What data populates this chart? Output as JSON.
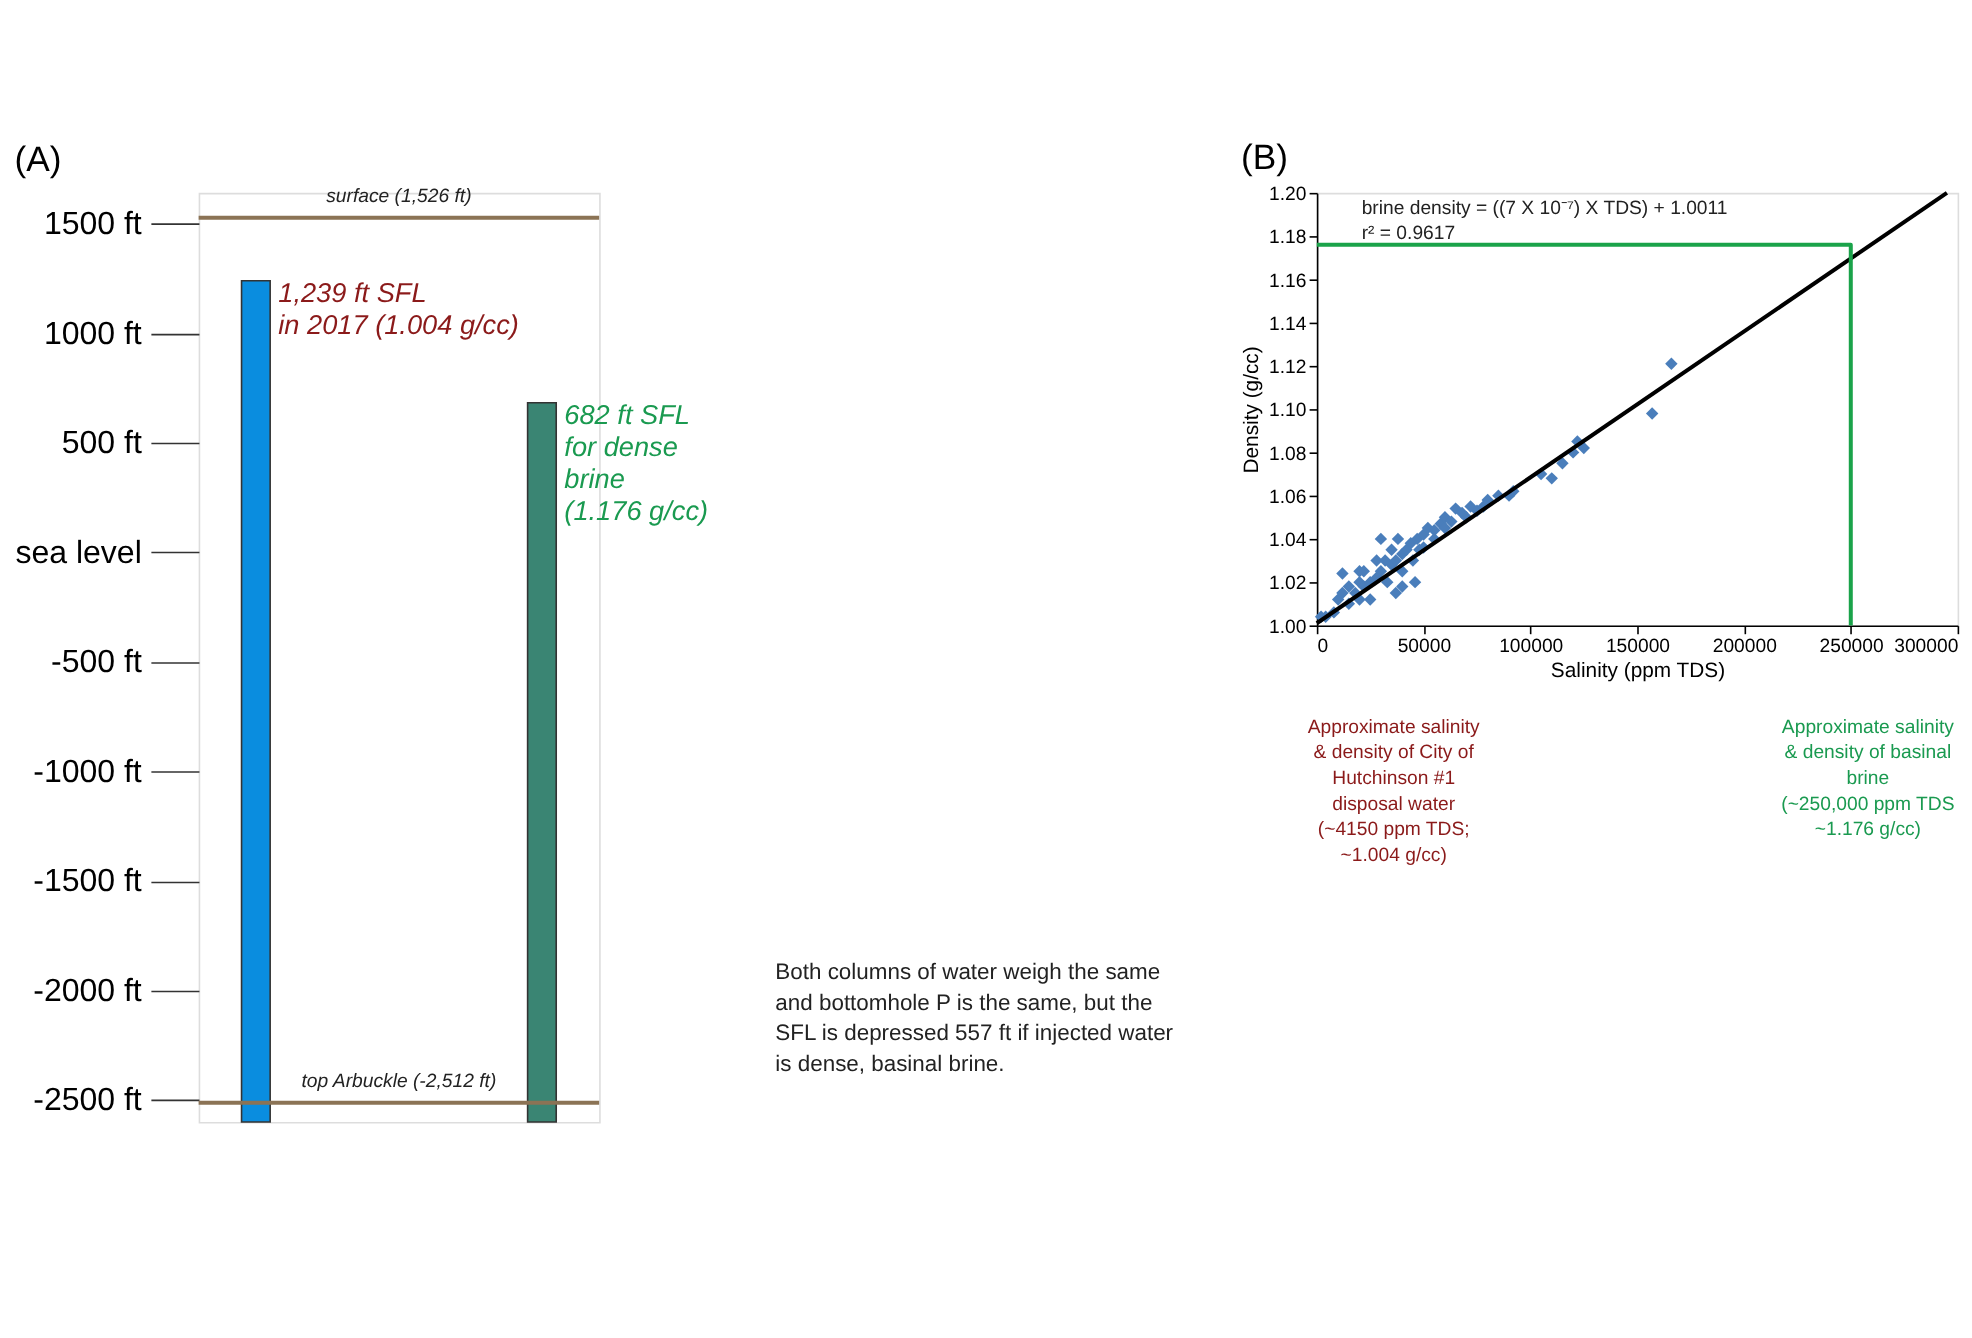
{
  "chart_data": [
    {
      "type": "bar",
      "title": "(A)",
      "categories": [
        null,
        null
      ],
      "base": [
        -2600,
        -2600
      ],
      "values": [
        3839,
        3282
      ],
      "colors": [
        "#0a8ddf",
        "#3a8573"
      ],
      "ylim": [
        -2600,
        1640
      ],
      "yticks": [
        {
          "value": 1500,
          "label": "1500 ft"
        },
        {
          "value": 1000,
          "label": "1000 ft"
        },
        {
          "value": 500,
          "label": "500 ft"
        },
        {
          "value": 0,
          "label": "sea level"
        },
        {
          "value": -500,
          "label": "-500 ft"
        },
        {
          "value": -1000,
          "label": "-1000 ft"
        },
        {
          "value": -1500,
          "label": "-1500 ft"
        },
        {
          "value": -2000,
          "label": "-2000 ft"
        },
        {
          "value": -2500,
          "label": "-2500 ft"
        }
      ],
      "tick_labels": "y",
      "grid": false,
      "ref_lines": [
        {
          "axis": "y",
          "value": 1526,
          "label": "surface (1,526 ft)",
          "color": "#8b7355"
        },
        {
          "axis": "y",
          "value": -2512,
          "label": "top Arbuckle (-2,512 ft)",
          "color": "#8b7355"
        }
      ],
      "annotations": [
        "1,239 ft SFL\nin 2017 (1.004 g/cc)",
        "682 ft SFL\nfor dense\nbrine\n(1.176 g/cc)",
        "Both columns of water weigh the same\nand bottomhole P is the same, but the\nSFL is depressed 557 ft if injected water\nis dense, basinal brine."
      ]
    },
    {
      "type": "scatter",
      "title": "(B)",
      "xlabel": "Salinity (ppm TDS)",
      "ylabel": "Density (g/cc)",
      "xlim": [
        0,
        300000
      ],
      "xticks": [
        0,
        50000,
        100000,
        150000,
        200000,
        250000,
        300000
      ],
      "ylim": [
        1.0,
        1.2
      ],
      "yticks": [
        {
          "value": 1.0,
          "label": "1.00"
        },
        {
          "value": 1.02,
          "label": "1.02"
        },
        {
          "value": 1.04,
          "label": "1.04"
        },
        {
          "value": 1.06,
          "label": "1.06"
        },
        {
          "value": 1.08,
          "label": "1.08"
        },
        {
          "value": 1.1,
          "label": "1.10"
        },
        {
          "value": 1.12,
          "label": "1.12"
        },
        {
          "value": 1.14,
          "label": "1.14"
        },
        {
          "value": 1.16,
          "label": "1.16"
        },
        {
          "value": 1.18,
          "label": "1.18"
        },
        {
          "value": 1.2,
          "label": "1.20"
        }
      ],
      "grid": false,
      "marker": "diamond",
      "series": [
        {
          "color": "#4a7ebb",
          "x": [
            2000,
            4150,
            8000,
            10000,
            12000,
            12000,
            15000,
            15000,
            18000,
            20000,
            20000,
            22000,
            22000,
            25000,
            25000,
            28000,
            28000,
            30000,
            30000,
            32000,
            33000,
            35000,
            35000,
            37000,
            38000,
            40000,
            40000,
            42000,
            44000,
            45000,
            47000,
            48000,
            50000,
            50000,
            52000,
            55000,
            55000,
            58000,
            60000,
            60000,
            63000,
            65000,
            68000,
            70000,
            72000,
            75000,
            78000,
            80000,
            85000,
            90000,
            92000,
            105000,
            110000,
            115000,
            120000,
            122000,
            125000,
            157000,
            166000,
            40000,
            20000,
            46000,
            37000
          ],
          "values": [
            1.004,
            1.004,
            1.006,
            1.012,
            1.024,
            1.015,
            1.01,
            1.018,
            1.015,
            1.02,
            1.012,
            1.025,
            1.018,
            1.02,
            1.012,
            1.022,
            1.03,
            1.025,
            1.04,
            1.03,
            1.02,
            1.028,
            1.035,
            1.03,
            1.04,
            1.033,
            1.025,
            1.035,
            1.038,
            1.03,
            1.04,
            1.035,
            1.042,
            1.036,
            1.045,
            1.044,
            1.04,
            1.047,
            1.045,
            1.05,
            1.048,
            1.054,
            1.052,
            1.05,
            1.055,
            1.053,
            1.055,
            1.058,
            1.06,
            1.06,
            1.062,
            1.07,
            1.068,
            1.075,
            1.08,
            1.085,
            1.082,
            1.098,
            1.121,
            1.018,
            1.025,
            1.02,
            1.015
          ]
        },
        {
          "type": "line",
          "marker": "none",
          "color": "#000000",
          "x": [
            0,
            295000
          ],
          "values": [
            1.001,
            1.2
          ]
        },
        {
          "type": "line",
          "marker": "none",
          "color": "#1aa34a",
          "x": [
            0,
            250000,
            250000
          ],
          "values": [
            1.176,
            1.176,
            1.0
          ]
        }
      ],
      "annotations": [
        "brine density = ((7 X 10⁻⁷) X TDS) + 1.0011\nr² = 0.9617",
        "Approximate salinity\n& density of City of\nHutchinson #1\ndisposal water\n(~4150 ppm TDS;\n~1.004 g/cc)",
        "Approximate salinity\n& density of basinal\nbrine\n(~250,000 ppm TDS\n~1.176 g/cc)"
      ]
    }
  ]
}
